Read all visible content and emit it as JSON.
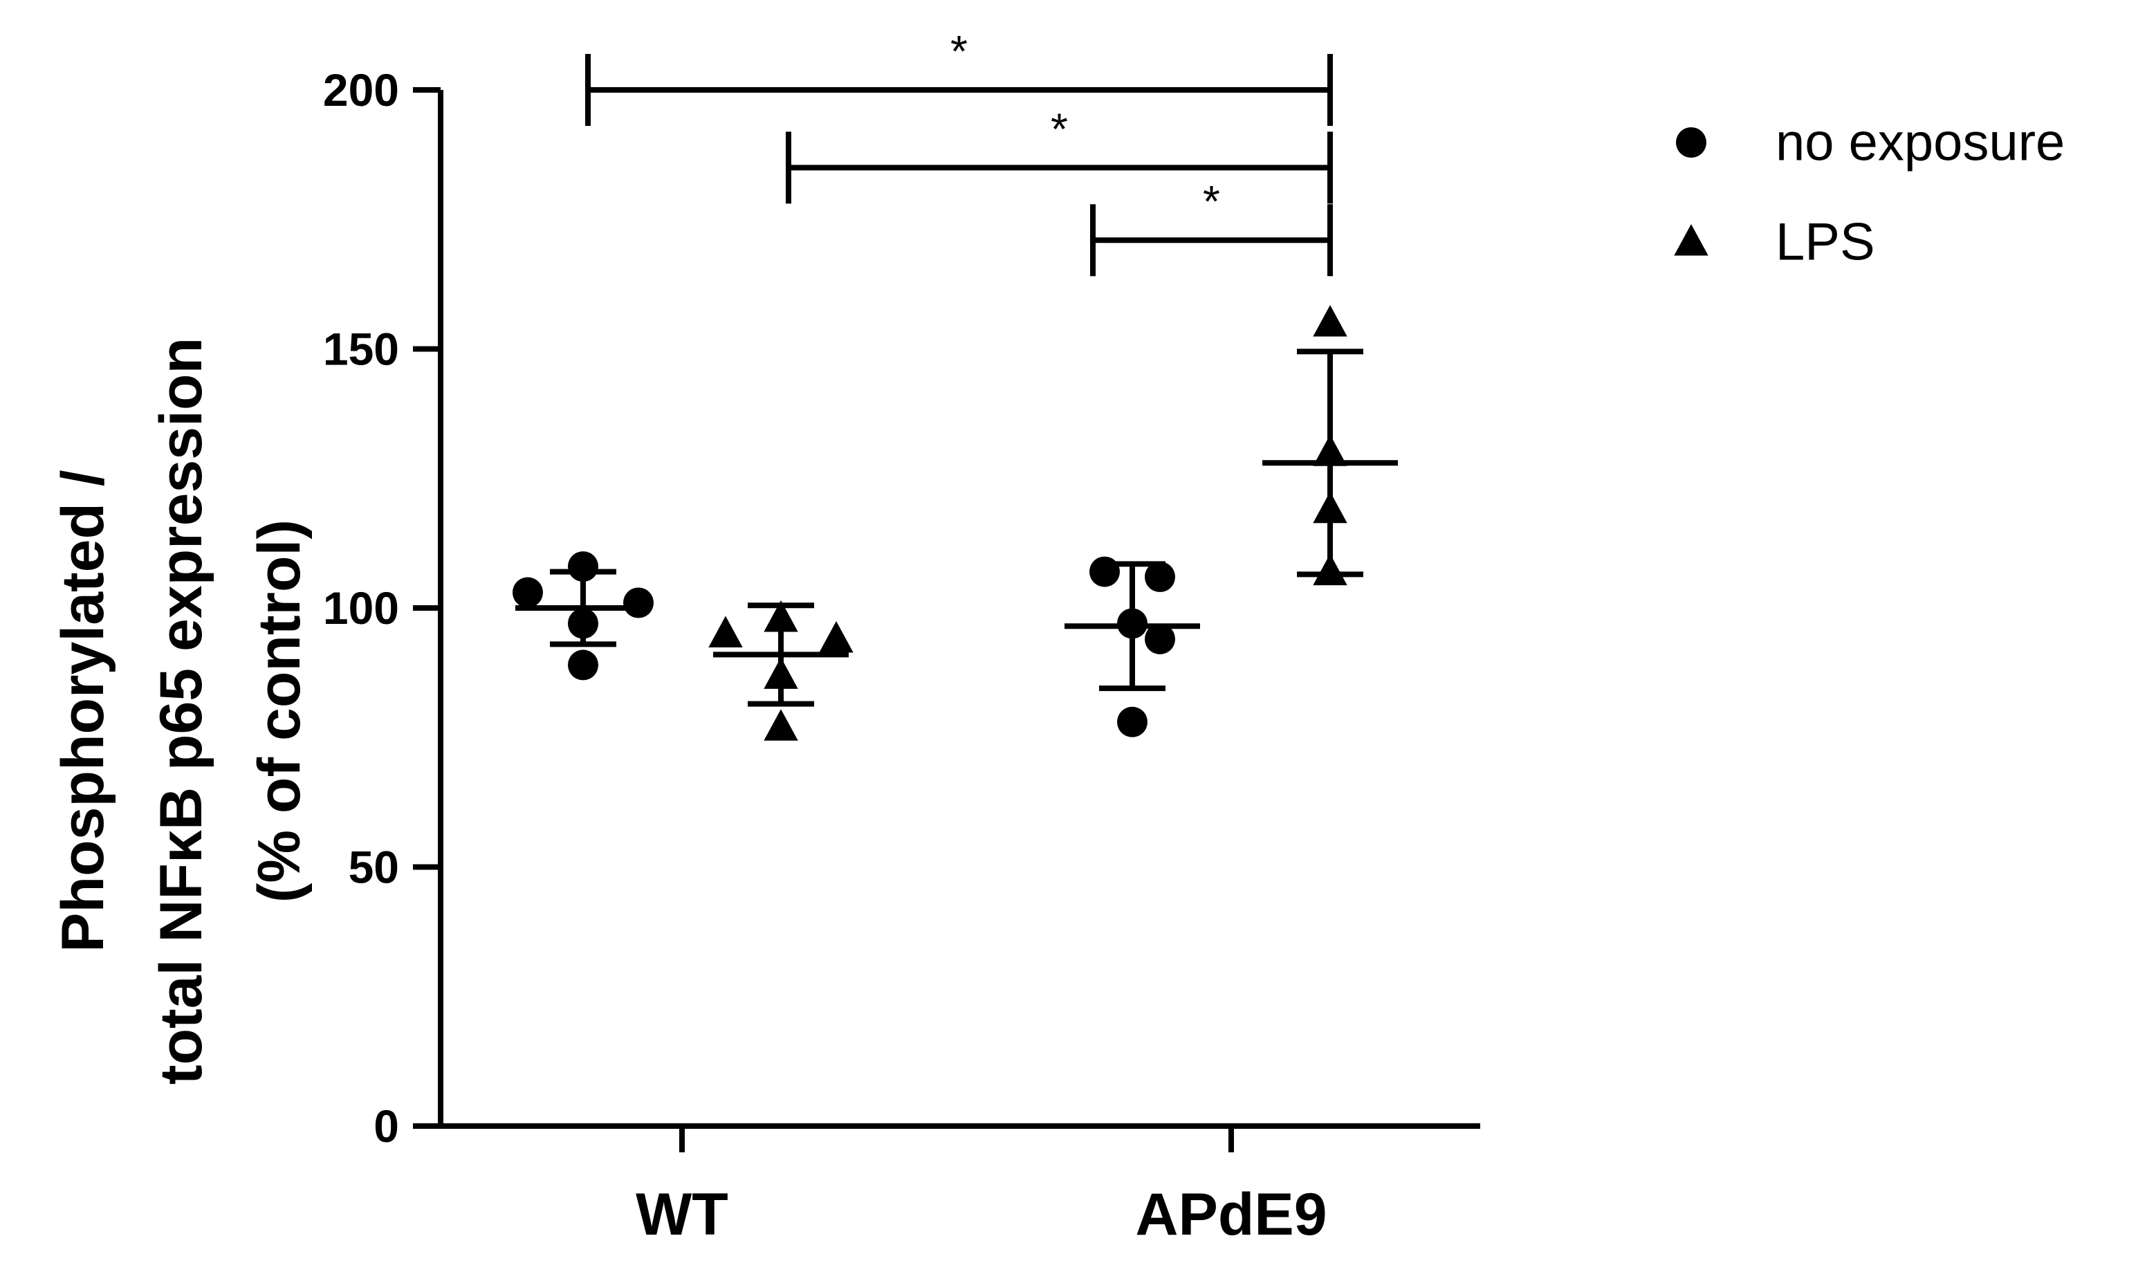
{
  "chart_data": {
    "type": "scatter",
    "ylabel_lines": [
      "Phosphorylated /",
      "total NFκB p65 expression",
      "(% of control)"
    ],
    "ylim": [
      0,
      200
    ],
    "yticks": [
      0,
      50,
      100,
      150,
      200
    ],
    "categories": [
      "WT",
      "APdE9"
    ],
    "grid": false,
    "legend_position": "top-right",
    "series": [
      {
        "name": "no exposure",
        "marker": "circle",
        "groups": [
          {
            "category": "WT",
            "values": [
              103,
              108,
              101,
              97,
              89
            ],
            "mean": 100,
            "sd_low": 93,
            "sd_high": 107
          },
          {
            "category": "APdE9",
            "values": [
              107,
              106,
              97,
              94,
              78
            ],
            "mean": 96.5,
            "sd_low": 84.5,
            "sd_high": 108.5
          }
        ]
      },
      {
        "name": "LPS",
        "marker": "triangle",
        "groups": [
          {
            "category": "WT",
            "values": [
              95,
              98,
              94,
              87,
              77
            ],
            "mean": 91,
            "sd_low": 81.5,
            "sd_high": 100.5
          },
          {
            "category": "APdE9",
            "values": [
              155,
              130,
              119,
              107
            ],
            "mean": 128,
            "sd_low": 106.5,
            "sd_high": 149.5
          }
        ]
      }
    ],
    "significance": [
      {
        "from": "WT no exposure",
        "to": "APdE9 LPS",
        "label": "*",
        "level": 200
      },
      {
        "from": "WT LPS",
        "to": "APdE9 LPS",
        "label": "*",
        "level": 185
      },
      {
        "from": "APdE9 no exposure",
        "to": "APdE9 LPS",
        "label": "*",
        "level": 171
      }
    ],
    "colors": {
      "marker": "#000000",
      "axis": "#000000"
    }
  }
}
